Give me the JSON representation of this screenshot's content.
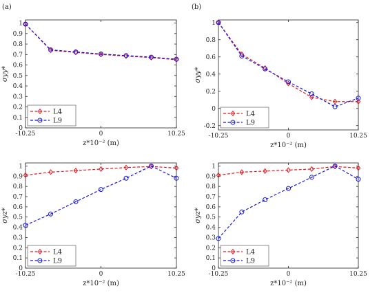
{
  "panel_labels": [
    "(a)",
    "(b)"
  ],
  "colors": {
    "L4": "#e8141c",
    "L9": "#1414e6",
    "axis": "#222222",
    "legend_border": "#444444"
  },
  "chart_data": [
    {
      "type": "line",
      "panel": "(a)",
      "xlabel": "z*10⁻² (m)",
      "ylabel": "σyy*",
      "x_ticks": [
        -10.25,
        0,
        10.25
      ],
      "x_tick_labels": [
        "-10.25",
        "0",
        "10.25"
      ],
      "xlim": [
        -10.25,
        10.25
      ],
      "y_ticks": [
        0,
        0.1,
        0.2,
        0.3,
        0.4,
        0.5,
        0.6,
        0.7,
        0.8,
        0.9,
        1
      ],
      "y_tick_labels": [
        "0",
        "0.1",
        "0.2",
        "0.3",
        "0.4",
        "0.5",
        "0.6",
        "0.7",
        "0.8",
        "0.9",
        "1"
      ],
      "ylim": [
        0,
        1.03
      ],
      "legend": "bottom-left",
      "grid": false,
      "x": [
        -10.25,
        -6.83,
        -3.42,
        0,
        3.42,
        6.83,
        10.25
      ],
      "series": [
        {
          "name": "L4",
          "marker": "diamond",
          "values": [
            0.99,
            0.74,
            0.72,
            0.7,
            0.685,
            0.67,
            0.65
          ]
        },
        {
          "name": "L9",
          "marker": "circle",
          "values": [
            0.99,
            0.745,
            0.725,
            0.705,
            0.69,
            0.675,
            0.655
          ]
        }
      ]
    },
    {
      "type": "line",
      "panel": "(b)",
      "xlabel": "z*10⁻² (m)",
      "ylabel": "σyy*",
      "x_ticks": [
        -10.25,
        0,
        10.25
      ],
      "x_tick_labels": [
        "-10.25",
        "0",
        "10.25"
      ],
      "xlim": [
        -10.25,
        10.25
      ],
      "y_ticks": [
        -0.2,
        0,
        0.2,
        0.4,
        0.6,
        0.8,
        1
      ],
      "y_tick_labels": [
        "-0.2",
        "0",
        "0.2",
        "0.4",
        "0.6",
        "0.8",
        "1"
      ],
      "ylim": [
        -0.25,
        1.03
      ],
      "legend": "bottom-left",
      "grid": false,
      "x": [
        -10.25,
        -6.83,
        -3.42,
        0,
        3.42,
        6.83,
        10.25
      ],
      "series": [
        {
          "name": "L4",
          "marker": "diamond",
          "values": [
            1.0,
            0.63,
            0.47,
            0.29,
            0.13,
            0.08,
            0.08
          ]
        },
        {
          "name": "L9",
          "marker": "circle",
          "values": [
            1.0,
            0.61,
            0.46,
            0.31,
            0.17,
            0.02,
            0.12
          ]
        }
      ]
    },
    {
      "type": "line",
      "panel": "(a)",
      "xlabel": "z*10⁻² (m)",
      "ylabel": "σyz*",
      "x_ticks": [
        -10.25,
        0,
        10.25
      ],
      "x_tick_labels": [
        "-10.25",
        "0",
        "10.25"
      ],
      "xlim": [
        -10.25,
        10.25
      ],
      "y_ticks": [
        0,
        0.1,
        0.2,
        0.3,
        0.4,
        0.5,
        0.6,
        0.7,
        0.8,
        0.9,
        1
      ],
      "y_tick_labels": [
        "0",
        "0.1",
        "0.2",
        "0.3",
        "0.4",
        "0.5",
        "0.6",
        "0.7",
        "0.8",
        "0.9",
        "1"
      ],
      "ylim": [
        0,
        1.03
      ],
      "legend": "bottom-left",
      "grid": false,
      "x": [
        -10.25,
        -6.83,
        -3.42,
        0,
        3.42,
        6.83,
        10.25
      ],
      "series": [
        {
          "name": "L4",
          "marker": "diamond",
          "values": [
            0.91,
            0.94,
            0.955,
            0.97,
            0.985,
            0.995,
            0.98
          ]
        },
        {
          "name": "L9",
          "marker": "circle",
          "values": [
            0.42,
            0.53,
            0.65,
            0.77,
            0.88,
            1.0,
            0.88
          ]
        }
      ]
    },
    {
      "type": "line",
      "panel": "(b)",
      "xlabel": "z*10⁻² (m)",
      "ylabel": "σyz*",
      "x_ticks": [
        -10.25,
        0,
        10.25
      ],
      "x_tick_labels": [
        "-10.25",
        "0",
        "10.25"
      ],
      "xlim": [
        -10.25,
        10.25
      ],
      "y_ticks": [
        0,
        0.1,
        0.2,
        0.3,
        0.4,
        0.5,
        0.6,
        0.7,
        0.8,
        0.9,
        1
      ],
      "y_tick_labels": [
        "0",
        "0.1",
        "0.2",
        "0.3",
        "0.4",
        "0.5",
        "0.6",
        "0.7",
        "0.8",
        "0.9",
        "1"
      ],
      "ylim": [
        0,
        1.03
      ],
      "legend": "bottom-left",
      "grid": false,
      "x": [
        -10.25,
        -6.83,
        -3.42,
        0,
        3.42,
        6.83,
        10.25
      ],
      "series": [
        {
          "name": "L4",
          "marker": "diamond",
          "values": [
            0.91,
            0.94,
            0.95,
            0.96,
            0.97,
            0.995,
            0.98
          ]
        },
        {
          "name": "L9",
          "marker": "circle",
          "values": [
            0.29,
            0.55,
            0.67,
            0.78,
            0.89,
            1.0,
            0.87
          ]
        }
      ]
    }
  ]
}
